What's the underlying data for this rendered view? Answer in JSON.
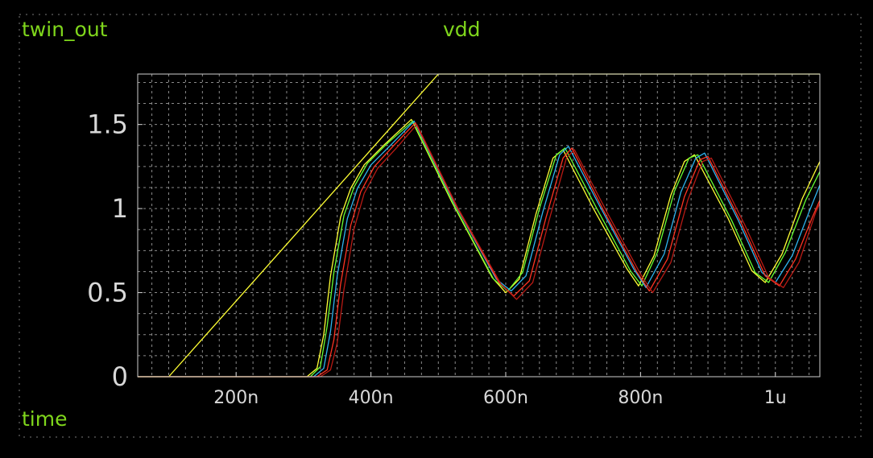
{
  "window": {
    "signal_left": "twin_out",
    "signal_center": "vdd",
    "x_axis_name": "time"
  },
  "colors": {
    "background": "#000000",
    "label": "#7fd61c",
    "axis_text": "#d8d8d8",
    "grid": "#8a8a8a",
    "frame": "#d0d0d0"
  },
  "chart_data": {
    "type": "line",
    "title": "",
    "xlabel": "time",
    "ylabel": "",
    "x_unit": "s",
    "xlim": [
      5.4e-08,
      1.066e-06
    ],
    "ylim": [
      0,
      1.8
    ],
    "x_ticks": [
      {
        "value": 2e-07,
        "label": "200n"
      },
      {
        "value": 4e-07,
        "label": "400n"
      },
      {
        "value": 6e-07,
        "label": "600n"
      },
      {
        "value": 8e-07,
        "label": "800n"
      },
      {
        "value": 1e-06,
        "label": "1u"
      }
    ],
    "y_ticks": [
      {
        "value": 0,
        "label": "0"
      },
      {
        "value": 0.5,
        "label": "0.5"
      },
      {
        "value": 1,
        "label": "1"
      },
      {
        "value": 1.5,
        "label": "1.5"
      }
    ],
    "grid": true,
    "series": [
      {
        "name": "vdd",
        "color": "#ffff33",
        "points": [
          [
            5.4e-08,
            0
          ],
          [
            1e-07,
            0
          ],
          [
            5e-07,
            1.8
          ],
          [
            1.066e-06,
            1.8
          ]
        ]
      },
      {
        "color": "#ffff33",
        "points": [
          [
            5.4e-08,
            0
          ],
          [
            3.05e-07,
            0
          ],
          [
            3.2e-07,
            0.05
          ],
          [
            3.3e-07,
            0.25
          ],
          [
            3.4e-07,
            0.6
          ],
          [
            3.55e-07,
            0.95
          ],
          [
            3.7e-07,
            1.12
          ],
          [
            3.9e-07,
            1.26
          ],
          [
            4.2e-07,
            1.38
          ],
          [
            4.6e-07,
            1.53
          ],
          [
            5.2e-07,
            1.04
          ],
          [
            5.8e-07,
            0.59
          ],
          [
            6e-07,
            0.5
          ],
          [
            6.2e-07,
            0.58
          ],
          [
            6.45e-07,
            0.97
          ],
          [
            6.7e-07,
            1.3
          ],
          [
            6.85e-07,
            1.35
          ],
          [
            7.3e-07,
            1.0
          ],
          [
            7.8e-07,
            0.64
          ],
          [
            7.97e-07,
            0.54
          ],
          [
            8.2e-07,
            0.72
          ],
          [
            8.45e-07,
            1.08
          ],
          [
            8.65e-07,
            1.28
          ],
          [
            8.8e-07,
            1.32
          ],
          [
            9.3e-07,
            0.94
          ],
          [
            9.65e-07,
            0.63
          ],
          [
            9.85e-07,
            0.56
          ],
          [
            1.01e-06,
            0.73
          ],
          [
            1.04e-06,
            1.06
          ],
          [
            1.066e-06,
            1.28
          ]
        ]
      },
      {
        "color": "#66ff33",
        "points": [
          [
            5.4e-08,
            0
          ],
          [
            3.1e-07,
            0
          ],
          [
            3.25e-07,
            0.06
          ],
          [
            3.35e-07,
            0.3
          ],
          [
            3.45e-07,
            0.62
          ],
          [
            3.6e-07,
            0.96
          ],
          [
            3.75e-07,
            1.13
          ],
          [
            3.95e-07,
            1.27
          ],
          [
            4.25e-07,
            1.39
          ],
          [
            4.62e-07,
            1.52
          ],
          [
            5.22e-07,
            1.03
          ],
          [
            5.82e-07,
            0.58
          ],
          [
            6.03e-07,
            0.51
          ],
          [
            6.25e-07,
            0.62
          ],
          [
            6.5e-07,
            1.0
          ],
          [
            6.75e-07,
            1.32
          ],
          [
            6.88e-07,
            1.36
          ],
          [
            7.35e-07,
            1.0
          ],
          [
            7.85e-07,
            0.63
          ],
          [
            8.02e-07,
            0.54
          ],
          [
            8.25e-07,
            0.74
          ],
          [
            8.5e-07,
            1.1
          ],
          [
            8.72e-07,
            1.3
          ],
          [
            8.85e-07,
            1.32
          ],
          [
            9.35e-07,
            0.93
          ],
          [
            9.7e-07,
            0.62
          ],
          [
            9.9e-07,
            0.56
          ],
          [
            1.015e-06,
            0.74
          ],
          [
            1.045e-06,
            1.05
          ],
          [
            1.066e-06,
            1.22
          ]
        ]
      },
      {
        "color": "#2fb4f0",
        "points": [
          [
            5.4e-08,
            0
          ],
          [
            3.15e-07,
            0
          ],
          [
            3.3e-07,
            0.05
          ],
          [
            3.4e-07,
            0.27
          ],
          [
            3.5e-07,
            0.6
          ],
          [
            3.65e-07,
            0.94
          ],
          [
            3.8e-07,
            1.12
          ],
          [
            4e-07,
            1.26
          ],
          [
            4.3e-07,
            1.38
          ],
          [
            4.64e-07,
            1.52
          ],
          [
            5.24e-07,
            1.03
          ],
          [
            5.86e-07,
            0.58
          ],
          [
            6.08e-07,
            0.51
          ],
          [
            6.3e-07,
            0.6
          ],
          [
            6.55e-07,
            0.98
          ],
          [
            6.8e-07,
            1.32
          ],
          [
            6.93e-07,
            1.37
          ],
          [
            7.4e-07,
            1.01
          ],
          [
            7.9e-07,
            0.64
          ],
          [
            8.08e-07,
            0.53
          ],
          [
            8.35e-07,
            0.73
          ],
          [
            8.6e-07,
            1.1
          ],
          [
            8.82e-07,
            1.3
          ],
          [
            8.95e-07,
            1.33
          ],
          [
            9.45e-07,
            0.93
          ],
          [
            9.8e-07,
            0.62
          ],
          [
            1e-06,
            0.56
          ],
          [
            1.025e-06,
            0.72
          ],
          [
            1.05e-06,
            0.98
          ],
          [
            1.066e-06,
            1.14
          ]
        ]
      },
      {
        "color": "#ff3322",
        "points": [
          [
            5.4e-08,
            0
          ],
          [
            3.2e-07,
            0
          ],
          [
            3.35e-07,
            0.04
          ],
          [
            3.45e-07,
            0.22
          ],
          [
            3.55e-07,
            0.55
          ],
          [
            3.7e-07,
            0.9
          ],
          [
            3.85e-07,
            1.1
          ],
          [
            4.05e-07,
            1.25
          ],
          [
            4.35e-07,
            1.38
          ],
          [
            4.66e-07,
            1.51
          ],
          [
            5.26e-07,
            1.02
          ],
          [
            5.9e-07,
            0.56
          ],
          [
            6.12e-07,
            0.48
          ],
          [
            6.35e-07,
            0.57
          ],
          [
            6.6e-07,
            0.95
          ],
          [
            6.85e-07,
            1.3
          ],
          [
            6.98e-07,
            1.36
          ],
          [
            7.45e-07,
            0.99
          ],
          [
            7.95e-07,
            0.62
          ],
          [
            8.13e-07,
            0.51
          ],
          [
            8.4e-07,
            0.7
          ],
          [
            8.65e-07,
            1.07
          ],
          [
            8.88e-07,
            1.29
          ],
          [
            9e-07,
            1.31
          ],
          [
            9.5e-07,
            0.91
          ],
          [
            9.85e-07,
            0.6
          ],
          [
            1.006e-06,
            0.54
          ],
          [
            1.03e-06,
            0.7
          ],
          [
            1.055e-06,
            0.95
          ],
          [
            1.066e-06,
            1.05
          ]
        ]
      },
      {
        "color": "#b81a14",
        "points": [
          [
            5.4e-08,
            0
          ],
          [
            3.25e-07,
            0
          ],
          [
            3.4e-07,
            0.04
          ],
          [
            3.5e-07,
            0.2
          ],
          [
            3.6e-07,
            0.52
          ],
          [
            3.75e-07,
            0.88
          ],
          [
            3.9e-07,
            1.09
          ],
          [
            4.1e-07,
            1.24
          ],
          [
            4.4e-07,
            1.37
          ],
          [
            4.68e-07,
            1.5
          ],
          [
            5.28e-07,
            1.01
          ],
          [
            5.93e-07,
            0.55
          ],
          [
            6.16e-07,
            0.46
          ],
          [
            6.4e-07,
            0.56
          ],
          [
            6.65e-07,
            0.94
          ],
          [
            6.9e-07,
            1.3
          ],
          [
            7.02e-07,
            1.35
          ],
          [
            7.5e-07,
            0.98
          ],
          [
            8e-07,
            0.61
          ],
          [
            8.18e-07,
            0.5
          ],
          [
            8.45e-07,
            0.68
          ],
          [
            8.7e-07,
            1.05
          ],
          [
            8.92e-07,
            1.28
          ],
          [
            9.05e-07,
            1.3
          ],
          [
            9.55e-07,
            0.9
          ],
          [
            9.9e-07,
            0.59
          ],
          [
            1.012e-06,
            0.53
          ],
          [
            1.035e-06,
            0.68
          ],
          [
            1.06e-06,
            0.98
          ],
          [
            1.066e-06,
            1.03
          ]
        ]
      }
    ]
  }
}
